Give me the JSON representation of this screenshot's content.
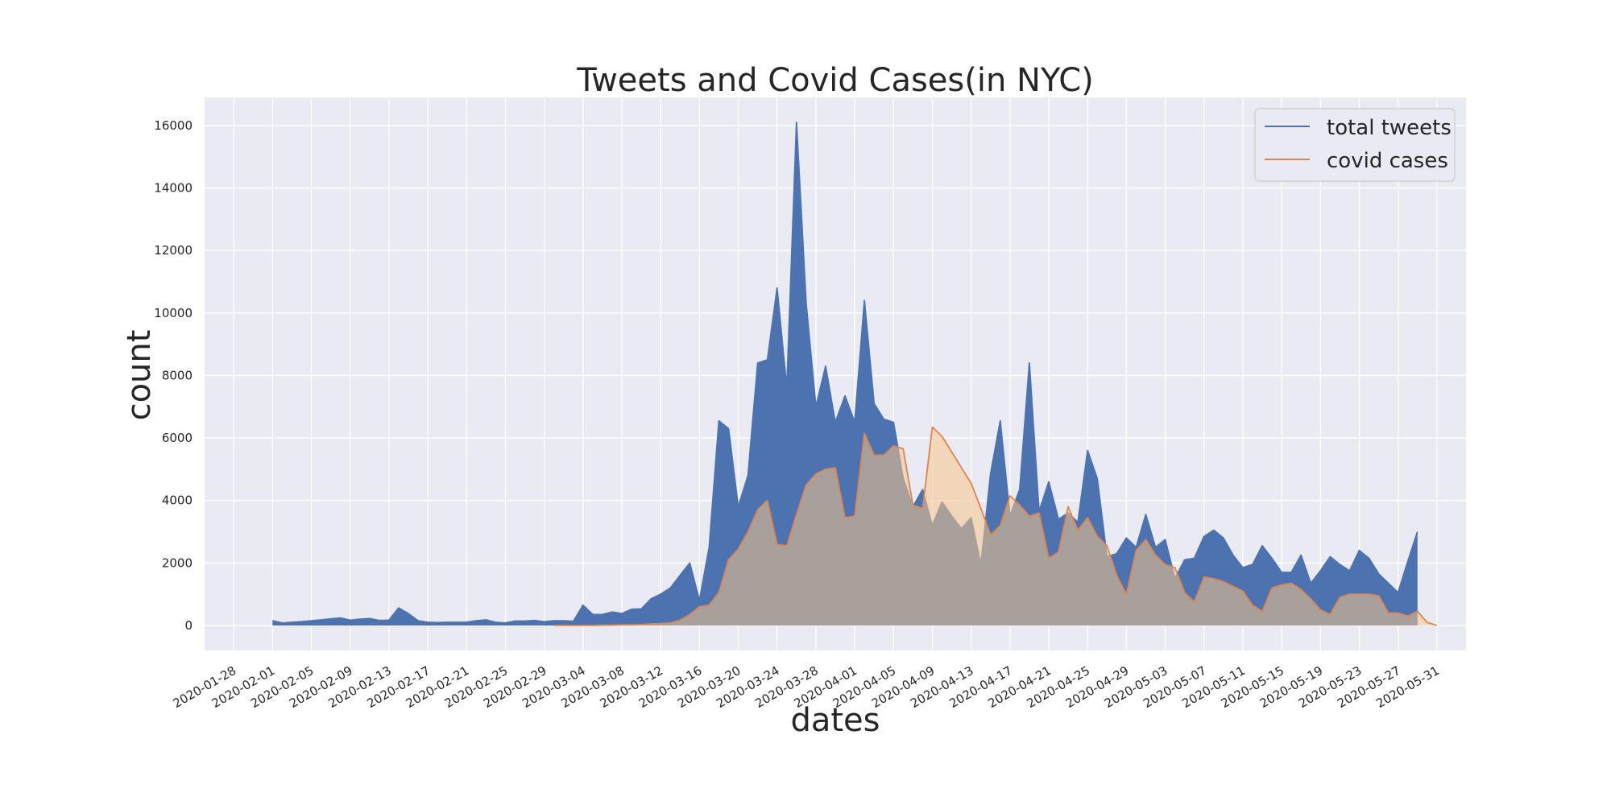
{
  "chart_data": {
    "type": "area",
    "title": "Tweets and Covid Cases(in NYC)",
    "xlabel": "dates",
    "ylabel": "count",
    "xlim": [
      "2020-01-25",
      "2020-06-03"
    ],
    "ylim": [
      -800,
      16900
    ],
    "y_ticks": [
      0,
      2000,
      4000,
      6000,
      8000,
      10000,
      12000,
      14000,
      16000
    ],
    "x_ticks": [
      "2020-01-28",
      "2020-02-01",
      "2020-02-05",
      "2020-02-09",
      "2020-02-13",
      "2020-02-17",
      "2020-02-21",
      "2020-02-25",
      "2020-02-29",
      "2020-03-04",
      "2020-03-08",
      "2020-03-12",
      "2020-03-16",
      "2020-03-20",
      "2020-03-24",
      "2020-03-28",
      "2020-04-01",
      "2020-04-05",
      "2020-04-09",
      "2020-04-13",
      "2020-04-17",
      "2020-04-21",
      "2020-04-25",
      "2020-04-29",
      "2020-05-03",
      "2020-05-07",
      "2020-05-11",
      "2020-05-15",
      "2020-05-19",
      "2020-05-23",
      "2020-05-27",
      "2020-05-31"
    ],
    "grid": true,
    "legend_position": "top-right",
    "series": [
      {
        "name": "total tweets",
        "line_color": "#4c72b0",
        "fill_color": "#4c72b0",
        "start_date": "2020-02-01",
        "values": [
          150,
          80,
          100,
          120,
          150,
          180,
          210,
          240,
          170,
          200,
          220,
          160,
          170,
          560,
          380,
          150,
          100,
          90,
          100,
          100,
          100,
          150,
          180,
          100,
          80,
          140,
          140,
          160,
          120,
          150,
          150,
          130,
          650,
          350,
          350,
          430,
          380,
          520,
          530,
          850,
          1000,
          1200,
          1600,
          2000,
          800,
          2500,
          6550,
          6300,
          3800,
          4800,
          8400,
          8500,
          10800,
          7600,
          16100,
          10300,
          7000,
          8300,
          6500,
          7350,
          6500,
          10400,
          7100,
          6600,
          6500,
          4700,
          3800,
          4350,
          3200,
          3950,
          3500,
          3100,
          3450,
          1950,
          4850,
          6550,
          3500,
          4350,
          8400,
          3650,
          4600,
          3400,
          3600,
          3300,
          5600,
          4700,
          2200,
          2300,
          2800,
          2500,
          3550,
          2500,
          2750,
          1500,
          2100,
          2150,
          2850,
          3050,
          2800,
          2250,
          1850,
          1950,
          2550,
          2150,
          1700,
          1700,
          2250,
          1350,
          1750,
          2200,
          1950,
          1750,
          2400,
          2150,
          1650,
          1350,
          1050,
          2050,
          3000
        ]
      },
      {
        "name": "covid cases",
        "line_color": "#dd8452",
        "fill_color": "#f5c48a",
        "start_date": "2020-03-01",
        "values": [
          0,
          0,
          0,
          0,
          0,
          10,
          10,
          20,
          20,
          30,
          50,
          60,
          80,
          170,
          350,
          600,
          650,
          1050,
          2100,
          2450,
          3000,
          3700,
          4000,
          2600,
          2550,
          3550,
          4500,
          4850,
          5000,
          5050,
          3450,
          3500,
          6150,
          5450,
          5450,
          5750,
          5650,
          3850,
          3750,
          6350,
          6050,
          5550,
          5050,
          4550,
          3750,
          2900,
          3200,
          4150,
          3850,
          3500,
          3600,
          2150,
          2350,
          3800,
          3050,
          3450,
          2850,
          2550,
          1600,
          1000,
          2400,
          2750,
          2250,
          1950,
          1850,
          1050,
          750,
          1550,
          1500,
          1400,
          1250,
          1100,
          650,
          450,
          1200,
          1300,
          1350,
          1150,
          850,
          500,
          350,
          900,
          1000,
          1000,
          1000,
          950,
          400,
          400,
          300,
          450,
          100,
          0
        ]
      }
    ]
  }
}
